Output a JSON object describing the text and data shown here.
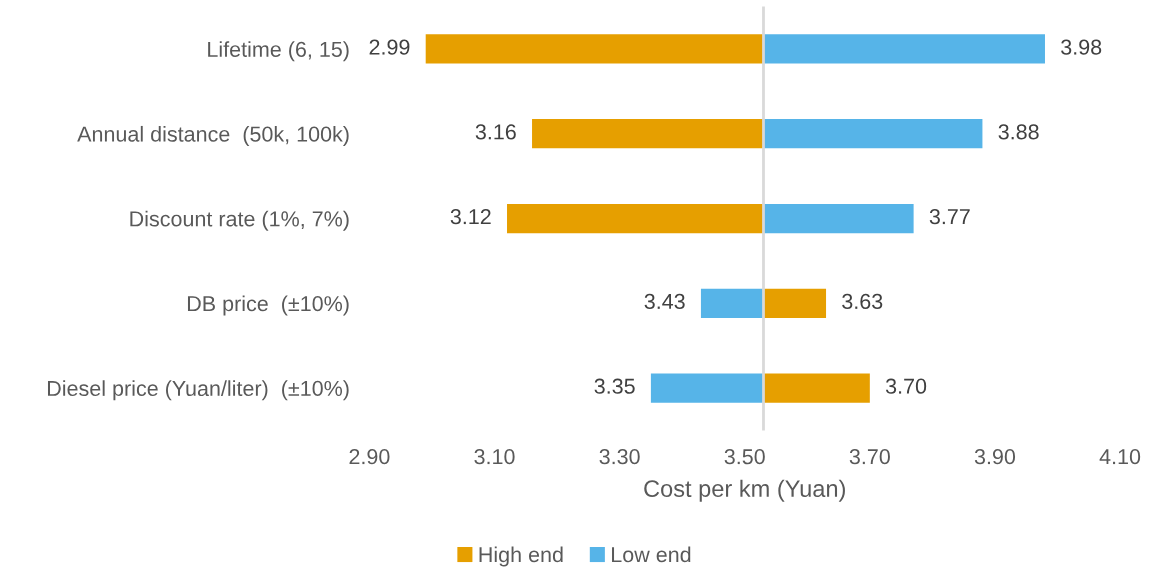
{
  "chart_data": {
    "type": "bar",
    "orientation": "horizontal",
    "categories": [
      "Lifetime (6, 15)",
      "Annual distance  (50k, 100k)",
      "Discount rate (1%, 7%)",
      "DB price  (±10%)",
      "Diesel price (Yuan/liter)  (±10%)"
    ],
    "series": [
      {
        "name": "High end",
        "color": "#e69f00",
        "base": [
          3.53,
          3.53,
          3.53,
          3.53,
          3.53
        ],
        "values": [
          -0.54,
          -0.37,
          -0.41,
          0.1,
          0.17
        ],
        "value_labels": [
          "2.99",
          "3.16",
          "3.12",
          "3.63",
          "3.70"
        ]
      },
      {
        "name": "Low end",
        "color": "#56b4e8",
        "base": [
          3.53,
          3.53,
          3.53,
          3.53,
          3.53
        ],
        "values": [
          0.45,
          0.35,
          0.24,
          -0.1,
          -0.18
        ],
        "value_labels": [
          "3.98",
          "3.88",
          "3.77",
          "3.43",
          "3.35"
        ]
      }
    ],
    "xlabel": "Cost per km (Yuan)",
    "xlim": [
      2.9,
      4.1
    ],
    "xticks": [
      {
        "value": 2.9,
        "label": "2.90"
      },
      {
        "value": 3.1,
        "label": "3.10"
      },
      {
        "value": 3.3,
        "label": "3.30"
      },
      {
        "value": 3.5,
        "label": "3.50"
      },
      {
        "value": 3.7,
        "label": "3.70"
      },
      {
        "value": 3.9,
        "label": "3.90"
      },
      {
        "value": 4.1,
        "label": "4.10"
      }
    ],
    "ref_lines": [
      {
        "axis": "x",
        "value": 3.53,
        "color": "#d9d9d9"
      }
    ],
    "grid": false,
    "legend": "bottom"
  }
}
